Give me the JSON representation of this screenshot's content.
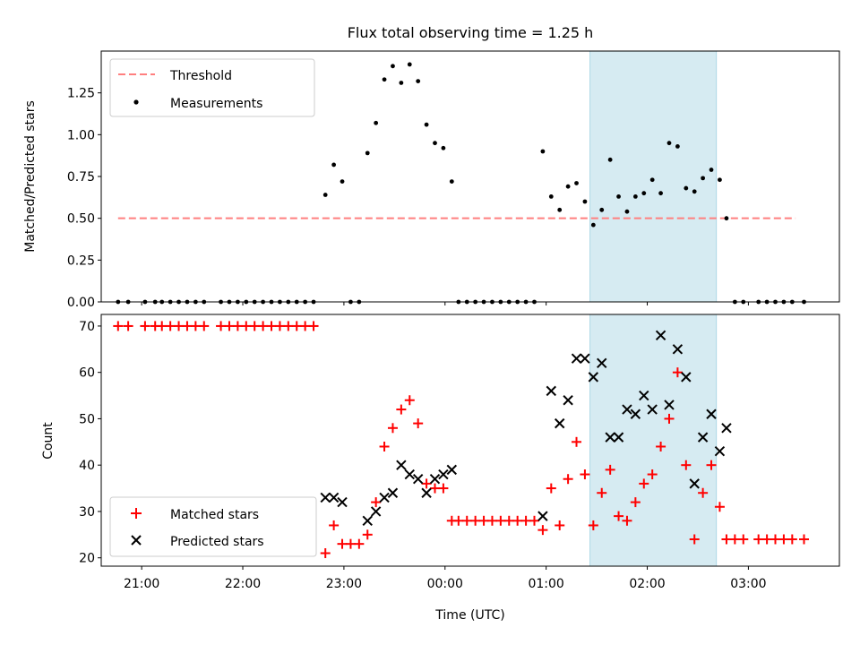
{
  "chart_data": [
    {
      "type": "scatter",
      "title": "Flux total observing time = 1.25 h",
      "ylabel": "Matched/Predicted stars",
      "xlabel": "",
      "x_is_time": true,
      "xlim": [
        "20:36",
        "03:54"
      ],
      "ylim": [
        0,
        1.5
      ],
      "y_ticks": [
        0.0,
        0.25,
        0.5,
        0.75,
        1.0,
        1.25
      ],
      "y_tick_labels": [
        "0.00",
        "0.25",
        "0.50",
        "0.75",
        "1.00",
        "1.25"
      ],
      "x_tick_labels": [
        "21:00",
        "22:00",
        "23:00",
        "00:00",
        "01:00",
        "02:00",
        "03:00"
      ],
      "highlight_span": [
        "01:26",
        "02:41"
      ],
      "legend": "top-left",
      "series": [
        {
          "name": "Threshold",
          "style": "dashed-line",
          "color": "#ff7f7f",
          "x": [
            "20:46",
            "03:28"
          ],
          "y": [
            0.5,
            0.5
          ]
        },
        {
          "name": "Measurements",
          "style": "dot",
          "color": "#000000",
          "points": [
            [
              "20:46",
              0
            ],
            [
              "20:52",
              0
            ],
            [
              "21:02",
              0
            ],
            [
              "21:08",
              0
            ],
            [
              "21:12",
              0
            ],
            [
              "21:17",
              0
            ],
            [
              "21:22",
              0
            ],
            [
              "21:27",
              0
            ],
            [
              "21:32",
              0
            ],
            [
              "21:37",
              0
            ],
            [
              "21:47",
              0
            ],
            [
              "21:52",
              0
            ],
            [
              "21:57",
              0
            ],
            [
              "22:02",
              0
            ],
            [
              "22:07",
              0
            ],
            [
              "22:12",
              0
            ],
            [
              "22:17",
              0
            ],
            [
              "22:22",
              0
            ],
            [
              "22:27",
              0
            ],
            [
              "22:32",
              0
            ],
            [
              "22:37",
              0
            ],
            [
              "22:42",
              0
            ],
            [
              "22:49",
              0.64
            ],
            [
              "22:54",
              0.82
            ],
            [
              "22:59",
              0.72
            ],
            [
              "23:04",
              0
            ],
            [
              "23:09",
              0
            ],
            [
              "23:14",
              0.89
            ],
            [
              "23:19",
              1.07
            ],
            [
              "23:24",
              1.33
            ],
            [
              "23:29",
              1.41
            ],
            [
              "23:34",
              1.31
            ],
            [
              "23:39",
              1.42
            ],
            [
              "23:44",
              1.32
            ],
            [
              "23:49",
              1.06
            ],
            [
              "23:54",
              0.95
            ],
            [
              "23:59",
              0.92
            ],
            [
              "00:04",
              0.72
            ],
            [
              "00:08",
              0
            ],
            [
              "00:13",
              0
            ],
            [
              "00:18",
              0
            ],
            [
              "00:23",
              0
            ],
            [
              "00:28",
              0
            ],
            [
              "00:33",
              0
            ],
            [
              "00:38",
              0
            ],
            [
              "00:43",
              0
            ],
            [
              "00:48",
              0
            ],
            [
              "00:53",
              0
            ],
            [
              "00:58",
              0.9
            ],
            [
              "01:03",
              0.63
            ],
            [
              "01:08",
              0.55
            ],
            [
              "01:13",
              0.69
            ],
            [
              "01:18",
              0.71
            ],
            [
              "01:23",
              0.6
            ],
            [
              "01:28",
              0.46
            ],
            [
              "01:33",
              0.55
            ],
            [
              "01:38",
              0.85
            ],
            [
              "01:43",
              0.63
            ],
            [
              "01:48",
              0.54
            ],
            [
              "01:53",
              0.63
            ],
            [
              "01:58",
              0.65
            ],
            [
              "02:03",
              0.73
            ],
            [
              "02:08",
              0.65
            ],
            [
              "02:13",
              0.95
            ],
            [
              "02:18",
              0.93
            ],
            [
              "02:23",
              0.68
            ],
            [
              "02:28",
              0.66
            ],
            [
              "02:33",
              0.74
            ],
            [
              "02:38",
              0.79
            ],
            [
              "02:43",
              0.73
            ],
            [
              "02:47",
              0.5
            ],
            [
              "02:52",
              0
            ],
            [
              "02:57",
              0
            ],
            [
              "03:06",
              0
            ],
            [
              "03:11",
              0
            ],
            [
              "03:16",
              0
            ],
            [
              "03:21",
              0
            ],
            [
              "03:26",
              0
            ],
            [
              "03:33",
              0
            ]
          ]
        }
      ]
    },
    {
      "type": "scatter",
      "title": "",
      "ylabel": "Count",
      "xlabel": "Time (UTC)",
      "x_is_time": true,
      "xlim": [
        "20:36",
        "03:54"
      ],
      "ylim": [
        18.2,
        72.5
      ],
      "y_ticks": [
        20,
        30,
        40,
        50,
        60,
        70
      ],
      "y_tick_labels": [
        "20",
        "30",
        "40",
        "50",
        "60",
        "70"
      ],
      "x_tick_labels": [
        "21:00",
        "22:00",
        "23:00",
        "00:00",
        "01:00",
        "02:00",
        "03:00"
      ],
      "highlight_span": [
        "01:26",
        "02:41"
      ],
      "legend": "bottom-left",
      "series": [
        {
          "name": "Matched stars",
          "style": "plus",
          "color": "#ff0000",
          "points": [
            [
              "20:46",
              70
            ],
            [
              "20:52",
              70
            ],
            [
              "21:02",
              70
            ],
            [
              "21:08",
              70
            ],
            [
              "21:12",
              70
            ],
            [
              "21:17",
              70
            ],
            [
              "21:22",
              70
            ],
            [
              "21:27",
              70
            ],
            [
              "21:32",
              70
            ],
            [
              "21:37",
              70
            ],
            [
              "21:47",
              70
            ],
            [
              "21:52",
              70
            ],
            [
              "21:57",
              70
            ],
            [
              "22:02",
              70
            ],
            [
              "22:07",
              70
            ],
            [
              "22:12",
              70
            ],
            [
              "22:17",
              70
            ],
            [
              "22:22",
              70
            ],
            [
              "22:27",
              70
            ],
            [
              "22:32",
              70
            ],
            [
              "22:37",
              70
            ],
            [
              "22:42",
              70
            ],
            [
              "22:49",
              21
            ],
            [
              "22:54",
              27
            ],
            [
              "22:59",
              23
            ],
            [
              "23:04",
              23
            ],
            [
              "23:09",
              23
            ],
            [
              "23:14",
              25
            ],
            [
              "23:19",
              32
            ],
            [
              "23:24",
              44
            ],
            [
              "23:29",
              48
            ],
            [
              "23:34",
              52
            ],
            [
              "23:39",
              54
            ],
            [
              "23:44",
              49
            ],
            [
              "23:49",
              36
            ],
            [
              "23:54",
              35
            ],
            [
              "23:59",
              35
            ],
            [
              "00:04",
              28
            ],
            [
              "00:08",
              28
            ],
            [
              "00:13",
              28
            ],
            [
              "00:18",
              28
            ],
            [
              "00:23",
              28
            ],
            [
              "00:28",
              28
            ],
            [
              "00:33",
              28
            ],
            [
              "00:38",
              28
            ],
            [
              "00:43",
              28
            ],
            [
              "00:48",
              28
            ],
            [
              "00:53",
              28
            ],
            [
              "00:58",
              26
            ],
            [
              "01:03",
              35
            ],
            [
              "01:08",
              27
            ],
            [
              "01:13",
              37
            ],
            [
              "01:18",
              45
            ],
            [
              "01:23",
              38
            ],
            [
              "01:28",
              27
            ],
            [
              "01:33",
              34
            ],
            [
              "01:38",
              39
            ],
            [
              "01:43",
              29
            ],
            [
              "01:48",
              28
            ],
            [
              "01:53",
              32
            ],
            [
              "01:58",
              36
            ],
            [
              "02:03",
              38
            ],
            [
              "02:08",
              44
            ],
            [
              "02:13",
              50
            ],
            [
              "02:18",
              60
            ],
            [
              "02:23",
              40
            ],
            [
              "02:28",
              24
            ],
            [
              "02:33",
              34
            ],
            [
              "02:38",
              40
            ],
            [
              "02:43",
              31
            ],
            [
              "02:47",
              24
            ],
            [
              "02:52",
              24
            ],
            [
              "02:57",
              24
            ],
            [
              "03:06",
              24
            ],
            [
              "03:11",
              24
            ],
            [
              "03:16",
              24
            ],
            [
              "03:21",
              24
            ],
            [
              "03:26",
              24
            ],
            [
              "03:33",
              24
            ]
          ]
        },
        {
          "name": "Predicted stars",
          "style": "cross",
          "color": "#000000",
          "points": [
            [
              "22:49",
              33
            ],
            [
              "22:54",
              33
            ],
            [
              "22:59",
              32
            ],
            [
              "23:14",
              28
            ],
            [
              "23:19",
              30
            ],
            [
              "23:24",
              33
            ],
            [
              "23:29",
              34
            ],
            [
              "23:34",
              40
            ],
            [
              "23:39",
              38
            ],
            [
              "23:44",
              37
            ],
            [
              "23:49",
              34
            ],
            [
              "23:54",
              37
            ],
            [
              "23:59",
              38
            ],
            [
              "00:04",
              39
            ],
            [
              "00:58",
              29
            ],
            [
              "01:03",
              56
            ],
            [
              "01:08",
              49
            ],
            [
              "01:13",
              54
            ],
            [
              "01:18",
              63
            ],
            [
              "01:23",
              63
            ],
            [
              "01:28",
              59
            ],
            [
              "01:33",
              62
            ],
            [
              "01:38",
              46
            ],
            [
              "01:43",
              46
            ],
            [
              "01:48",
              52
            ],
            [
              "01:53",
              51
            ],
            [
              "01:58",
              55
            ],
            [
              "02:03",
              52
            ],
            [
              "02:08",
              68
            ],
            [
              "02:13",
              53
            ],
            [
              "02:18",
              65
            ],
            [
              "02:23",
              59
            ],
            [
              "02:28",
              36
            ],
            [
              "02:33",
              46
            ],
            [
              "02:38",
              51
            ],
            [
              "02:43",
              43
            ],
            [
              "02:47",
              48
            ]
          ]
        }
      ]
    }
  ]
}
